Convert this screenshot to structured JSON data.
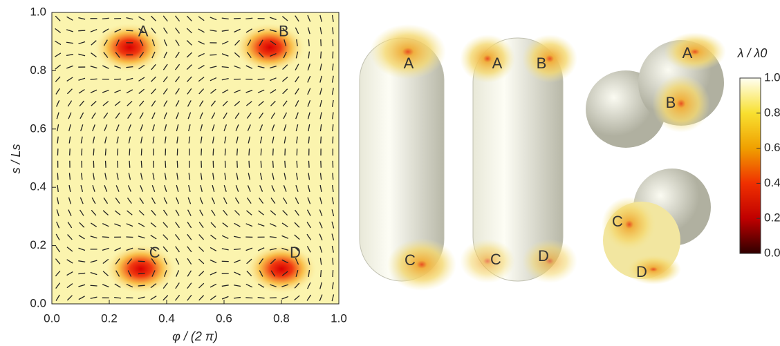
{
  "chart_data": {
    "type": "heatmap",
    "x_label": "φ / (2 π)",
    "y_label": "s / Ls",
    "xlim": [
      0,
      1
    ],
    "ylim": [
      0,
      1
    ],
    "xticks": [
      {
        "value": 0,
        "label": "0.0"
      },
      0.2,
      0.4,
      0.6,
      0.8,
      {
        "value": 1,
        "label": "1.0"
      }
    ],
    "yticks": [
      {
        "value": 0,
        "label": "0.0"
      },
      0.2,
      0.4,
      0.6,
      0.8,
      {
        "value": 1,
        "label": "1.0"
      }
    ],
    "defects": [
      {
        "label": "A",
        "x": 0.27,
        "y": 0.88
      },
      {
        "label": "B",
        "x": 0.76,
        "y": 0.88
      },
      {
        "label": "C",
        "x": 0.31,
        "y": 0.12
      },
      {
        "label": "D",
        "x": 0.8,
        "y": 0.12
      }
    ],
    "colorbar": {
      "title": "λ / λ0",
      "lim": [
        0,
        1
      ],
      "ticks": [
        {
          "value": 0,
          "label": "0.0"
        },
        0.2,
        0.4,
        0.6,
        0.8,
        {
          "value": 1,
          "label": "1.0"
        }
      ]
    }
  }
}
